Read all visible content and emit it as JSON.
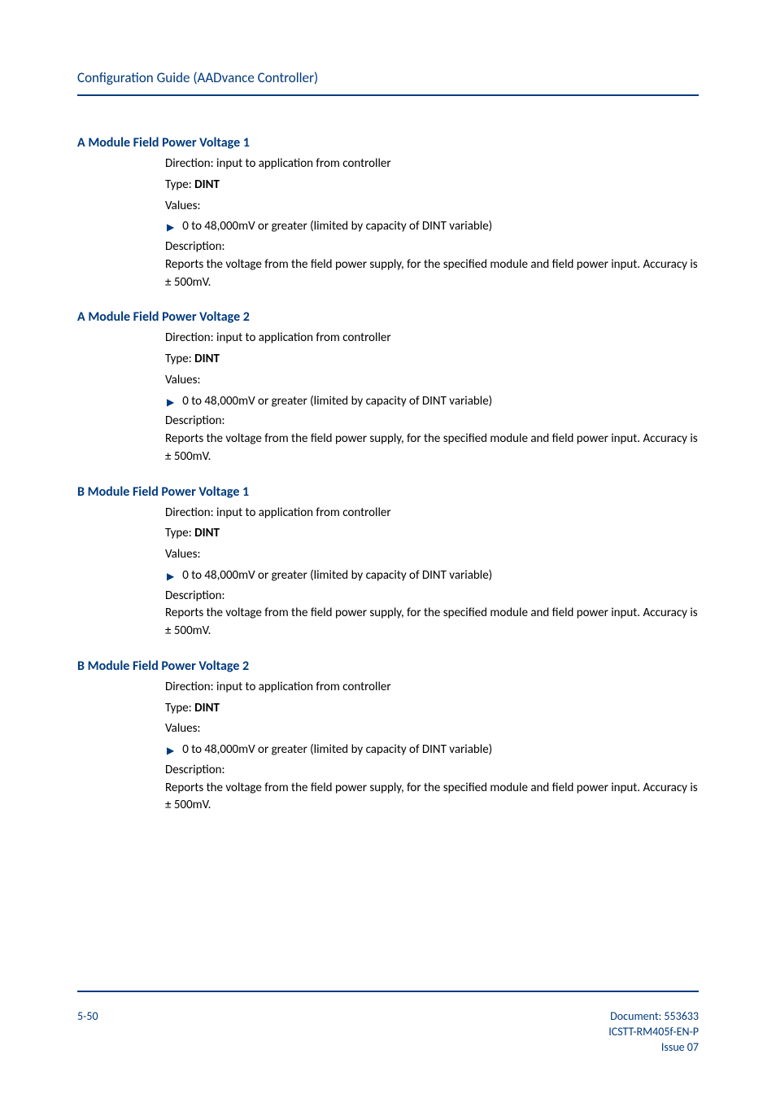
{
  "header": {
    "doc_title": "Configuration Guide (AADvance Controller)"
  },
  "sections": [
    {
      "heading": "A Module Field Power Voltage 1",
      "direction": "Direction: input to application from controller",
      "type_prefix": "Type: ",
      "type_value": "DINT",
      "values_label": "Values:",
      "bullet": "0 to 48,000mV or greater (limited by capacity of DINT variable)",
      "desc_label": "Description:",
      "desc_text": "Reports the voltage from the field power supply, for the specified module and field power input. Accuracy is ± 500mV."
    },
    {
      "heading": "A Module Field Power Voltage 2",
      "direction": "Direction: input to application from controller",
      "type_prefix": "Type: ",
      "type_value": "DINT",
      "values_label": "Values:",
      "bullet": "0 to 48,000mV or greater (limited by capacity of DINT variable)",
      "desc_label": "Description:",
      "desc_text": "Reports the voltage from the field power supply, for the specified module and field power input. Accuracy is ± 500mV."
    },
    {
      "heading": "B Module Field Power Voltage 1",
      "direction": "Direction: input to application from controller",
      "type_prefix": "Type: ",
      "type_value": "DINT",
      "values_label": "Values:",
      "bullet": "0 to 48,000mV or greater (limited by capacity of DINT variable)",
      "desc_label": "Description:",
      "desc_text": "Reports the voltage from the field power supply, for the specified module and field power input. Accuracy is ± 500mV."
    },
    {
      "heading": "B Module Field Power Voltage 2",
      "direction": "Direction: input to application from controller",
      "type_prefix": "Type: ",
      "type_value": "DINT",
      "values_label": "Values:",
      "bullet": "0 to 48,000mV or greater (limited by capacity of DINT variable)",
      "desc_label": "Description:",
      "desc_text": "Reports the voltage from the field power supply, for the specified module and field power input. Accuracy is ± 500mV."
    }
  ],
  "footer": {
    "page_number": "5-50",
    "doc_number": "Document: 553633",
    "doc_ref": "ICSTT-RM405f-EN-P",
    "issue": "Issue 07"
  },
  "bullet_glyph": "▶",
  "colors": {
    "brand_blue": "#003a7d",
    "text": "#000000",
    "background": "#ffffff"
  }
}
